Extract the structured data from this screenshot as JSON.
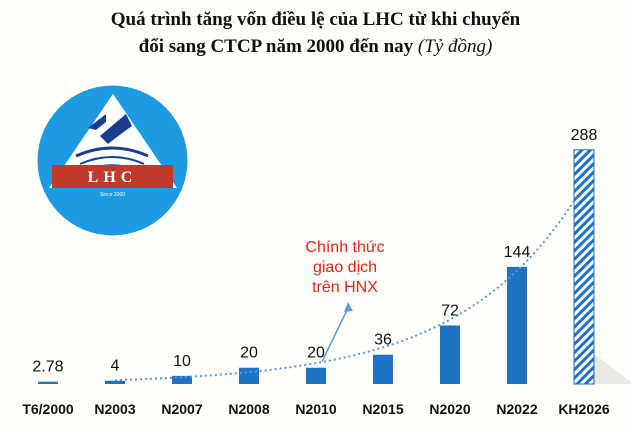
{
  "chart_data": {
    "type": "bar",
    "title_line1": "Quá trình tăng vốn điều lệ của LHC từ khi chuyển",
    "title_line2": "đổi sang CTCP năm 2000 đến nay",
    "unit": "(Tỷ đồng)",
    "categories": [
      "T6/2000",
      "N2003",
      "N2007",
      "N2008",
      "N2010",
      "N2015",
      "N2020",
      "N2022",
      "KH2026"
    ],
    "values": [
      2.78,
      4,
      10,
      20,
      20,
      36,
      72,
      144,
      288
    ],
    "value_labels": [
      "2.78",
      "4",
      "10",
      "20",
      "20",
      "36",
      "72",
      "144",
      "288"
    ],
    "annotation": [
      "Chính thức",
      "giao dịch",
      "trên HNX"
    ],
    "annotation_target": "N2010",
    "hatched_category": "KH2026",
    "trendline": "exponential",
    "ylim": [
      0,
      300
    ],
    "colors": {
      "bar": "#1f72c4",
      "hatch": "#1f72c4",
      "annotation_text": "#e0241b",
      "arrow": "#5b9bd5",
      "trend": "#5b9bd5"
    }
  },
  "logo": {
    "text": "LHC",
    "small_text": "Since 2000"
  }
}
